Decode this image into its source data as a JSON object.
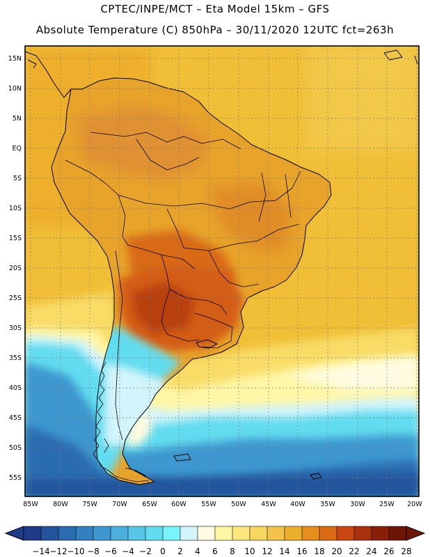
{
  "header": {
    "title_line1": "CPTEC/INPE/MCT –  Eta Model 15km – GFS",
    "title_line2": "Absolute Temperature (C) 850hPa – 30/11/2020 12UTC fct=263h"
  },
  "lat_labels": [
    "15N",
    "10N",
    "5N",
    "EQ",
    "5S",
    "10S",
    "15S",
    "20S",
    "25S",
    "30S",
    "35S",
    "40S",
    "45S",
    "50S",
    "55S"
  ],
  "lon_labels": [
    "85W",
    "80W",
    "75W",
    "70W",
    "65W",
    "60W",
    "55W",
    "50W",
    "45W",
    "40W",
    "35W",
    "30W",
    "25W",
    "20W"
  ],
  "colorbar": {
    "unit": "C",
    "ticks": [
      "-14",
      "-12",
      "-10",
      "-8",
      "-6",
      "-4",
      "-2",
      "0",
      "2",
      "4",
      "6",
      "8",
      "10",
      "12",
      "14",
      "16",
      "18",
      "20",
      "22",
      "24",
      "26",
      "28"
    ],
    "colors": [
      "#1d3b86",
      "#23549c",
      "#2a6cb0",
      "#3280c0",
      "#3e98cf",
      "#4bb0dc",
      "#55c6e6",
      "#62dcef",
      "#78f4fb",
      "#d2f4fb",
      "#fffbe0",
      "#fff7a4",
      "#fde87e",
      "#f8d760",
      "#f2c34a",
      "#ecb02d",
      "#e68f1d",
      "#dc6a12",
      "#c84810",
      "#a8300c",
      "#882008",
      "#6e1606"
    ]
  },
  "icons": {
    "colorbar_low_arrow": "triangle-left-icon",
    "colorbar_high_arrow": "triangle-right-icon"
  }
}
